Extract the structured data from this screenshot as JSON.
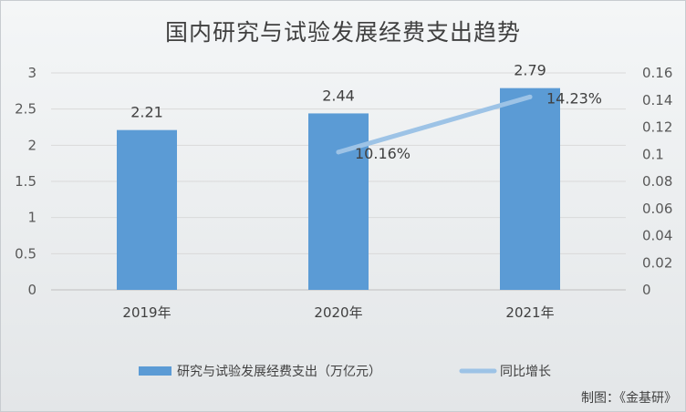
{
  "credit": "制图：《金基研》",
  "chart_data": {
    "type": "bar",
    "title": "国内研究与试验发展经费支出趋势",
    "categories": [
      "2019年",
      "2020年",
      "2021年"
    ],
    "series": [
      {
        "name": "研究与试验发展经费支出（万亿元）",
        "type": "bar",
        "axis": "left",
        "color": "#5b9bd5",
        "values": [
          2.21,
          2.44,
          2.79
        ],
        "labels": [
          "2.21",
          "2.44",
          "2.79"
        ]
      },
      {
        "name": "同比增长",
        "type": "line",
        "axis": "right",
        "color": "#9dc3e6",
        "values": [
          null,
          0.1016,
          0.1423
        ],
        "labels": [
          "",
          "10.16%",
          "14.23%"
        ]
      }
    ],
    "left_axis": {
      "ylim": [
        0,
        3
      ],
      "ticks": [
        0,
        0.5,
        1,
        1.5,
        2,
        2.5,
        3
      ],
      "tick_labels": [
        "0",
        "0.5",
        "1",
        "1.5",
        "2",
        "2.5",
        "3"
      ]
    },
    "right_axis": {
      "ylim": [
        0,
        0.16
      ],
      "ticks": [
        0,
        0.02,
        0.04,
        0.06,
        0.08,
        0.1,
        0.12,
        0.14,
        0.16
      ],
      "tick_labels": [
        "0",
        "0.02",
        "0.04",
        "0.06",
        "0.08",
        "0.1",
        "0.12",
        "0.14",
        "0.16"
      ]
    },
    "grid": true,
    "legend": "bottom"
  }
}
